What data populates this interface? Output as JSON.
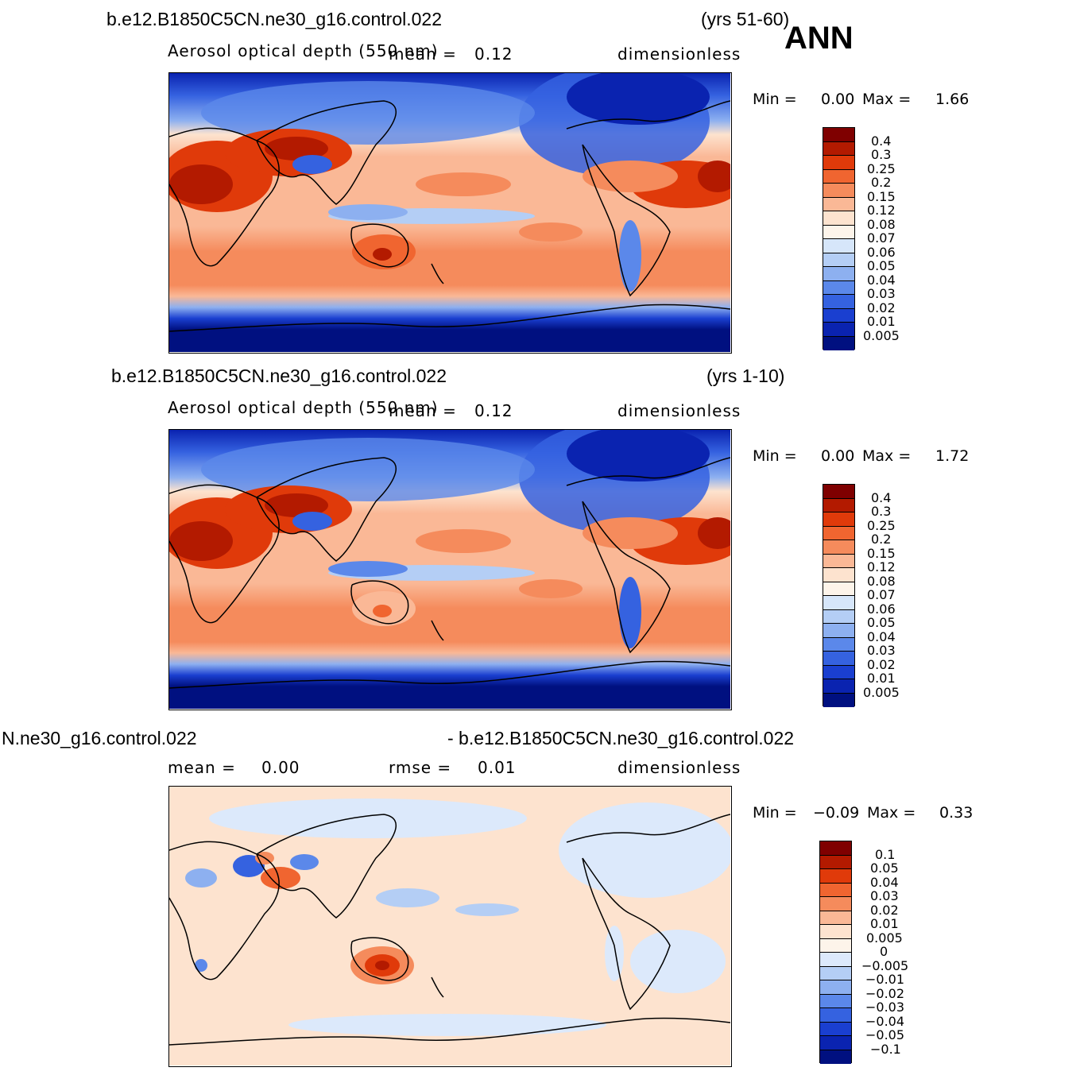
{
  "season": "ANN",
  "panels": [
    {
      "case": "b.e12.B1850C5CN.ne30_g16.control.022",
      "years": "(yrs 51-60)",
      "variable": "Aerosol optical depth (550 nm)",
      "mean_label": "mean =",
      "mean_value": "0.12",
      "units": "dimensionless",
      "min_label": "Min =",
      "min_value": "0.00",
      "max_label": "Max =",
      "max_value": "1.66",
      "colorbar_labels": [
        "0.4",
        "0.3",
        "0.25",
        "0.2",
        "0.15",
        "0.12",
        "0.08",
        "0.07",
        "0.06",
        "0.05",
        "0.04",
        "0.03",
        "0.02",
        "0.01",
        "0.005"
      ]
    },
    {
      "case": "b.e12.B1850C5CN.ne30_g16.control.022",
      "years": "(yrs 1-10)",
      "variable": "Aerosol optical depth (550 nm)",
      "mean_label": "mean =",
      "mean_value": "0.12",
      "units": "dimensionless",
      "min_label": "Min =",
      "min_value": "0.00",
      "max_label": "Max =",
      "max_value": "1.72",
      "colorbar_labels": [
        "0.4",
        "0.3",
        "0.25",
        "0.2",
        "0.15",
        "0.12",
        "0.08",
        "0.07",
        "0.06",
        "0.05",
        "0.04",
        "0.03",
        "0.02",
        "0.01",
        "0.005"
      ]
    },
    {
      "case_left": "N.ne30_g16.control.022",
      "case_right": "- b.e12.B1850C5CN.ne30_g16.control.022",
      "mean_label": "mean =",
      "mean_value": "0.00",
      "rmse_label": "rmse =",
      "rmse_value": "0.01",
      "units": "dimensionless",
      "min_label": "Min =",
      "min_value": "−0.09",
      "max_label": "Max =",
      "max_value": "0.33",
      "colorbar_labels": [
        "0.1",
        "0.05",
        "0.04",
        "0.03",
        "0.02",
        "0.01",
        "0.005",
        "0",
        "−0.005",
        "−0.01",
        "−0.02",
        "−0.03",
        "−0.04",
        "−0.05",
        "−0.1"
      ]
    }
  ],
  "colors": {
    "abs_scale": [
      "#7f0000",
      "#b31a00",
      "#e03a0a",
      "#f06530",
      "#f58b5c",
      "#fab896",
      "#fde3cf",
      "#fdf4ea",
      "#d6e6fa",
      "#b4cef5",
      "#8db0f0",
      "#5b88ea",
      "#3562e0",
      "#1a3fd0",
      "#0a23b0",
      "#001080"
    ],
    "diff_scale": [
      "#7f0000",
      "#b31a00",
      "#e03a0a",
      "#f06530",
      "#f58b5c",
      "#fab896",
      "#fde3cf",
      "#fdf4ea",
      "#dce9fb",
      "#b4cef5",
      "#8db0f0",
      "#5b88ea",
      "#3562e0",
      "#1a3fd0",
      "#0a23b0",
      "#001080"
    ]
  }
}
